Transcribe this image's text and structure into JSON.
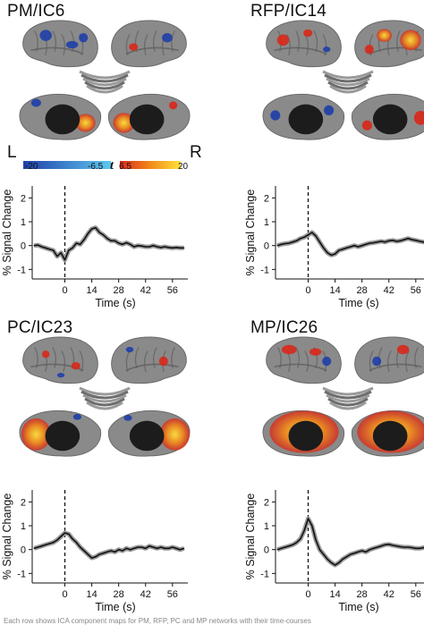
{
  "figure": {
    "panels": [
      {
        "id": "pm",
        "title": "PM/IC6"
      },
      {
        "id": "rfp",
        "title": "RFP/IC14"
      },
      {
        "id": "pc",
        "title": "PC/IC23"
      },
      {
        "id": "mp",
        "title": "MP/IC26"
      }
    ],
    "colorbar": {
      "left_label": "L",
      "right_label": "R",
      "t_symbol": "t",
      "neg_min": "-20",
      "neg_max": "-6.5",
      "pos_min": "6.5",
      "pos_max": "20",
      "colors": {
        "neg_dark": "#1f3fa8",
        "neg_light": "#5ec8f0",
        "pos_dark": "#d8281a",
        "pos_mid": "#f28a1a",
        "pos_light": "#ffe23a"
      }
    },
    "caption": "Each row shows ICA component maps for PM, RFP, PC and MP networks with their time-courses"
  },
  "chart_data": [
    {
      "type": "line",
      "panel": "PM/IC6",
      "xlabel": "Time (s)",
      "ylabel": "% Signal Change",
      "xticks": [
        0,
        14,
        28,
        42,
        56
      ],
      "yticks": [
        -1,
        0,
        1,
        2
      ],
      "xlim": [
        -17,
        64
      ],
      "ylim": [
        -1.4,
        2.5
      ],
      "event_line_x": 0,
      "x": [
        -16,
        -14,
        -12,
        -10,
        -8,
        -6,
        -4,
        -2,
        0,
        2,
        4,
        6,
        8,
        10,
        12,
        14,
        16,
        18,
        20,
        22,
        24,
        26,
        28,
        30,
        32,
        34,
        36,
        38,
        40,
        42,
        44,
        46,
        48,
        50,
        52,
        54,
        56,
        58,
        60,
        62
      ],
      "y": [
        0.0,
        0.02,
        -0.05,
        -0.1,
        -0.15,
        -0.2,
        -0.45,
        -0.3,
        -0.6,
        -0.2,
        -0.1,
        0.1,
        0.05,
        0.25,
        0.5,
        0.7,
        0.75,
        0.55,
        0.45,
        0.3,
        0.2,
        0.2,
        0.1,
        0.05,
        0.12,
        0.05,
        -0.05,
        0.0,
        -0.02,
        -0.05,
        -0.05,
        0.0,
        -0.05,
        -0.08,
        -0.05,
        -0.08,
        -0.1,
        -0.08,
        -0.1,
        -0.1
      ]
    },
    {
      "type": "line",
      "panel": "RFP/IC14",
      "xlabel": "Time (s)",
      "ylabel": "% Signal Change",
      "xticks": [
        0,
        14,
        28,
        42,
        56
      ],
      "yticks": [
        -1,
        0,
        1,
        2
      ],
      "xlim": [
        -17,
        64
      ],
      "ylim": [
        -1.4,
        2.5
      ],
      "event_line_x": 0,
      "x": [
        -16,
        -14,
        -12,
        -10,
        -8,
        -6,
        -4,
        -2,
        0,
        2,
        4,
        6,
        8,
        10,
        12,
        14,
        16,
        18,
        20,
        22,
        24,
        26,
        28,
        30,
        32,
        34,
        36,
        38,
        40,
        42,
        44,
        46,
        48,
        50,
        52,
        54,
        56,
        58,
        60,
        62
      ],
      "y": [
        0.0,
        0.05,
        0.08,
        0.1,
        0.15,
        0.2,
        0.3,
        0.35,
        0.45,
        0.55,
        0.4,
        0.15,
        -0.1,
        -0.3,
        -0.4,
        -0.35,
        -0.2,
        -0.15,
        -0.1,
        -0.05,
        0.0,
        -0.05,
        0.0,
        0.05,
        0.1,
        0.12,
        0.15,
        0.18,
        0.15,
        0.2,
        0.22,
        0.18,
        0.2,
        0.25,
        0.3,
        0.25,
        0.22,
        0.18,
        0.15,
        0.12
      ]
    },
    {
      "type": "line",
      "panel": "PC/IC23",
      "xlabel": "Time (s)",
      "ylabel": "% Signal Change",
      "xticks": [
        0,
        14,
        28,
        42,
        56
      ],
      "yticks": [
        -1,
        0,
        1,
        2
      ],
      "xlim": [
        -17,
        64
      ],
      "ylim": [
        -1.4,
        2.5
      ],
      "event_line_x": 0,
      "x": [
        -16,
        -14,
        -12,
        -10,
        -8,
        -6,
        -4,
        -2,
        0,
        2,
        4,
        6,
        8,
        10,
        12,
        14,
        16,
        18,
        20,
        22,
        24,
        26,
        28,
        30,
        32,
        34,
        36,
        38,
        40,
        42,
        44,
        46,
        48,
        50,
        52,
        54,
        56,
        58,
        60,
        62
      ],
      "y": [
        0.05,
        0.1,
        0.15,
        0.2,
        0.25,
        0.3,
        0.4,
        0.55,
        0.7,
        0.65,
        0.45,
        0.3,
        0.1,
        -0.05,
        -0.2,
        -0.35,
        -0.3,
        -0.2,
        -0.15,
        -0.1,
        -0.05,
        -0.1,
        0.0,
        -0.05,
        0.05,
        0.0,
        0.05,
        0.1,
        0.1,
        0.05,
        0.15,
        0.1,
        0.05,
        0.1,
        0.05,
        0.05,
        0.1,
        0.05,
        0.0,
        0.05
      ]
    },
    {
      "type": "line",
      "panel": "MP/IC26",
      "xlabel": "Time (s)",
      "ylabel": "% Signal Change",
      "xticks": [
        0,
        14,
        28,
        42,
        56
      ],
      "yticks": [
        -1,
        0,
        1,
        2
      ],
      "xlim": [
        -17,
        64
      ],
      "ylim": [
        -1.4,
        2.5
      ],
      "event_line_x": 0,
      "x": [
        -16,
        -14,
        -12,
        -10,
        -8,
        -6,
        -4,
        -2,
        0,
        2,
        4,
        6,
        8,
        10,
        12,
        14,
        16,
        18,
        20,
        22,
        24,
        26,
        28,
        30,
        32,
        34,
        36,
        38,
        40,
        42,
        44,
        46,
        48,
        50,
        52,
        54,
        56,
        58,
        60,
        62
      ],
      "y": [
        0.0,
        0.05,
        0.1,
        0.15,
        0.2,
        0.3,
        0.45,
        0.8,
        1.3,
        1.0,
        0.4,
        0.0,
        -0.2,
        -0.4,
        -0.55,
        -0.65,
        -0.55,
        -0.4,
        -0.3,
        -0.2,
        -0.15,
        -0.1,
        -0.05,
        -0.1,
        0.0,
        0.05,
        0.1,
        0.15,
        0.2,
        0.22,
        0.18,
        0.15,
        0.12,
        0.1,
        0.1,
        0.08,
        0.05,
        0.05,
        0.08,
        0.05
      ]
    }
  ]
}
